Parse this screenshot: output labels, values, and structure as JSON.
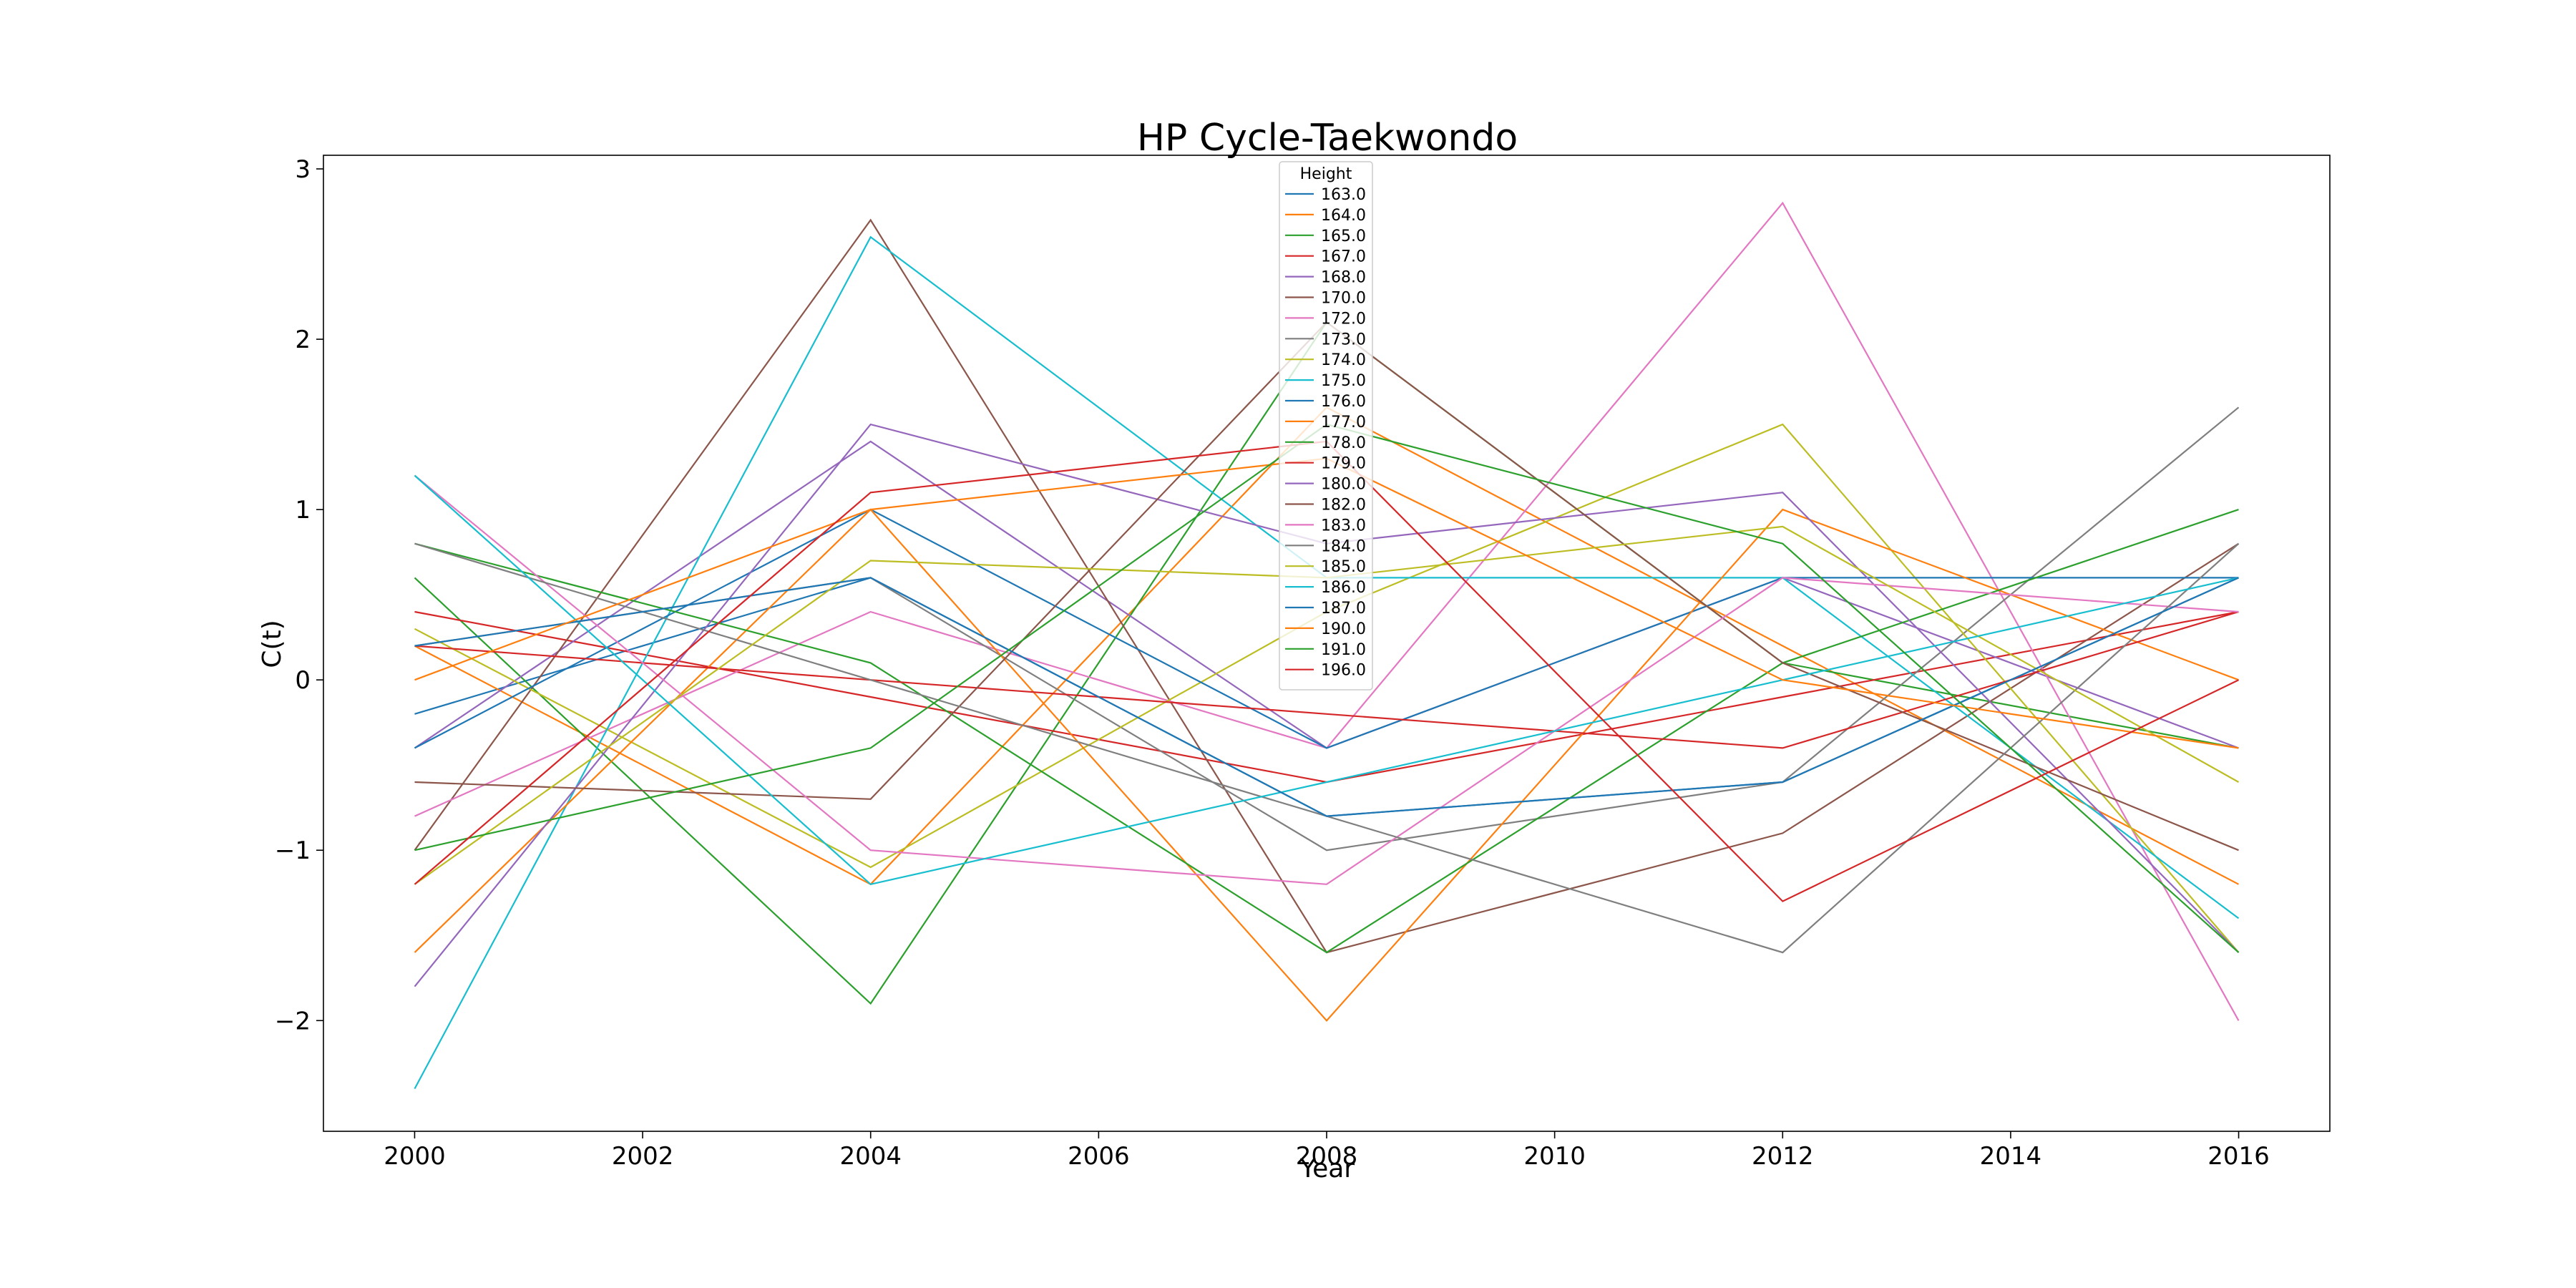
{
  "chart_data": {
    "type": "line",
    "title": "HP Cycle-Taekwondo",
    "xlabel": "Year",
    "ylabel": "C(t)",
    "x": [
      2000,
      2004,
      2008,
      2012,
      2016
    ],
    "xlim": [
      1999.2,
      2016.8
    ],
    "ylim": [
      -2.65,
      3.08
    ],
    "xticks": [
      2000,
      2002,
      2004,
      2006,
      2008,
      2010,
      2012,
      2014,
      2016
    ],
    "yticks": [
      -2,
      -1,
      0,
      1,
      2,
      3
    ],
    "ytick_labels": [
      "−2",
      "−1",
      "0",
      "1",
      "2",
      "3"
    ],
    "grid": false,
    "legend_title": "Height",
    "legend_position": "top-center",
    "series": [
      {
        "name": "163.0",
        "color": "#1f77b4",
        "values": [
          -0.2,
          0.6,
          -0.8,
          -0.6,
          0.6
        ]
      },
      {
        "name": "164.0",
        "color": "#ff7f0e",
        "values": [
          0.2,
          -1.2,
          1.6,
          0.2,
          -1.2
        ]
      },
      {
        "name": "165.0",
        "color": "#2ca02c",
        "values": [
          0.6,
          -1.9,
          2.1,
          0.1,
          -0.4
        ]
      },
      {
        "name": "167.0",
        "color": "#d62728",
        "values": [
          0.4,
          -0.1,
          -0.6,
          -0.1,
          0.4
        ]
      },
      {
        "name": "168.0",
        "color": "#9467bd",
        "values": [
          -0.4,
          1.4,
          -0.4,
          0.6,
          -0.4
        ]
      },
      {
        "name": "170.0",
        "color": "#8c564b",
        "values": [
          -1.0,
          2.7,
          -1.6,
          -0.9,
          0.8
        ]
      },
      {
        "name": "172.0",
        "color": "#e377c2",
        "values": [
          -0.8,
          0.4,
          -0.4,
          2.8,
          -2.0
        ]
      },
      {
        "name": "173.0",
        "color": "#7f7f7f",
        "values": [
          0.2,
          0.6,
          -1.0,
          -0.6,
          1.6
        ]
      },
      {
        "name": "174.0",
        "color": "#bcbd22",
        "values": [
          0.3,
          -1.1,
          0.4,
          1.5,
          -1.6
        ]
      },
      {
        "name": "175.0",
        "color": "#17becf",
        "values": [
          -2.4,
          2.6,
          0.6,
          0.6,
          -1.4
        ]
      },
      {
        "name": "176.0",
        "color": "#1f77b4",
        "values": [
          -0.4,
          1.0,
          -0.4,
          0.6,
          0.6
        ]
      },
      {
        "name": "177.0",
        "color": "#ff7f0e",
        "values": [
          -1.6,
          1.0,
          -2.0,
          1.0,
          0.0
        ]
      },
      {
        "name": "178.0",
        "color": "#2ca02c",
        "values": [
          0.8,
          0.1,
          -1.6,
          0.1,
          1.0
        ]
      },
      {
        "name": "179.0",
        "color": "#d62728",
        "values": [
          0.2,
          0.0,
          -0.2,
          -0.4,
          0.4
        ]
      },
      {
        "name": "180.0",
        "color": "#9467bd",
        "values": [
          -1.8,
          1.5,
          0.8,
          1.1,
          -1.6
        ]
      },
      {
        "name": "182.0",
        "color": "#8c564b",
        "values": [
          -0.6,
          -0.7,
          2.1,
          0.1,
          -1.0
        ]
      },
      {
        "name": "183.0",
        "color": "#e377c2",
        "values": [
          1.2,
          -1.0,
          -1.2,
          0.6,
          0.4
        ]
      },
      {
        "name": "184.0",
        "color": "#7f7f7f",
        "values": [
          0.8,
          0.0,
          -0.8,
          -1.6,
          0.8
        ]
      },
      {
        "name": "185.0",
        "color": "#bcbd22",
        "values": [
          -1.2,
          0.7,
          0.6,
          0.9,
          -0.6
        ]
      },
      {
        "name": "186.0",
        "color": "#17becf",
        "values": [
          1.2,
          -1.2,
          -0.6,
          0.0,
          0.6
        ]
      },
      {
        "name": "187.0",
        "color": "#1f77b4",
        "values": [
          0.2,
          0.6,
          -0.8,
          -0.6,
          0.6
        ]
      },
      {
        "name": "190.0",
        "color": "#ff7f0e",
        "values": [
          0.0,
          1.0,
          1.3,
          0.0,
          -0.4
        ]
      },
      {
        "name": "191.0",
        "color": "#2ca02c",
        "values": [
          -1.0,
          -0.4,
          1.5,
          0.8,
          -1.6
        ]
      },
      {
        "name": "196.0",
        "color": "#d62728",
        "values": [
          -1.2,
          1.1,
          1.4,
          -1.3,
          0.0
        ]
      }
    ]
  }
}
